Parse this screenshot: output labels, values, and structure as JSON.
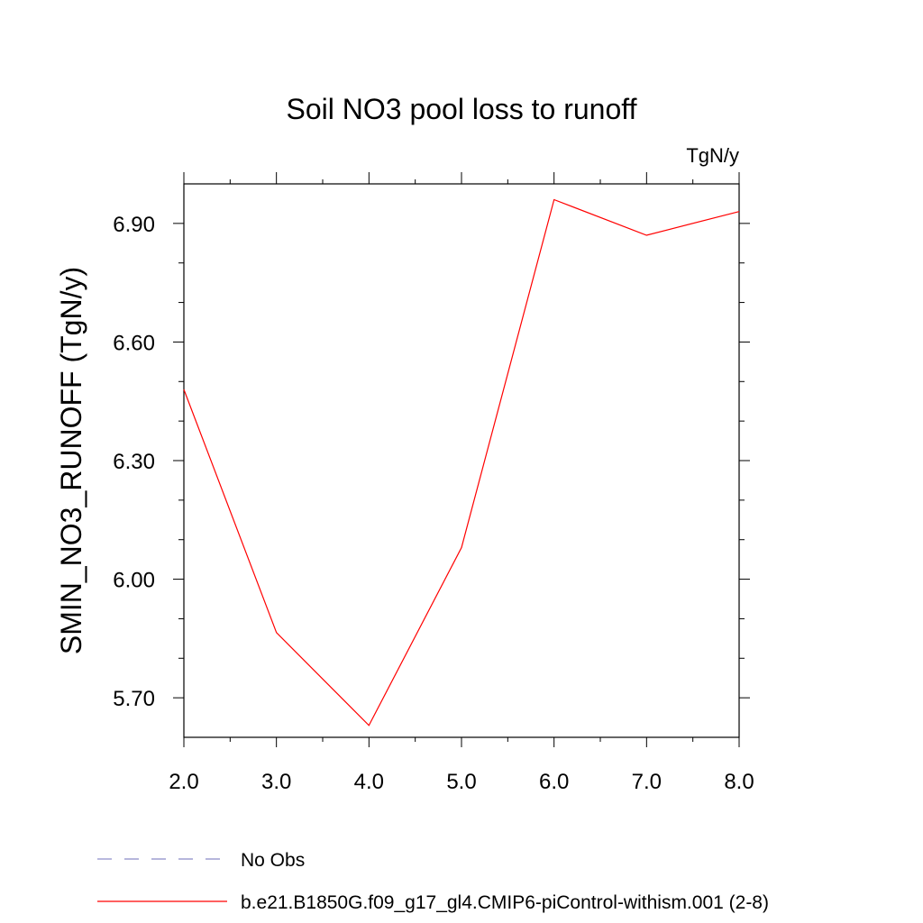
{
  "chart_data": {
    "type": "line",
    "title": "Soil NO3 pool loss to runoff",
    "units_label": "TgN/y",
    "xlabel": "",
    "ylabel": "SMIN_NO3_RUNOFF  (TgN/y)",
    "xlim": [
      2.0,
      8.0
    ],
    "ylim": [
      5.6,
      7.0
    ],
    "x_ticks": [
      2.0,
      3.0,
      4.0,
      5.0,
      6.0,
      7.0,
      8.0
    ],
    "x_tick_labels": [
      "2.0",
      "3.0",
      "4.0",
      "5.0",
      "6.0",
      "7.0",
      "8.0"
    ],
    "y_ticks": [
      5.7,
      6.0,
      6.3,
      6.6,
      6.9
    ],
    "y_tick_labels": [
      "5.70",
      "6.00",
      "6.30",
      "6.60",
      "6.90"
    ],
    "grid": false,
    "legend_position": "bottom",
    "series": [
      {
        "name": "b.e21.B1850G.f09_g17_gl4.CMIP6-piControl-withism.001 (2-8)",
        "color": "#ff0000",
        "style": "solid",
        "x": [
          2.0,
          3.0,
          4.0,
          5.0,
          6.0,
          7.0,
          8.0
        ],
        "y": [
          6.48,
          5.865,
          5.63,
          6.08,
          6.96,
          6.87,
          6.93
        ]
      },
      {
        "name": "No Obs",
        "color": "#8a8ac8",
        "style": "dashed",
        "x": [],
        "y": []
      }
    ]
  }
}
